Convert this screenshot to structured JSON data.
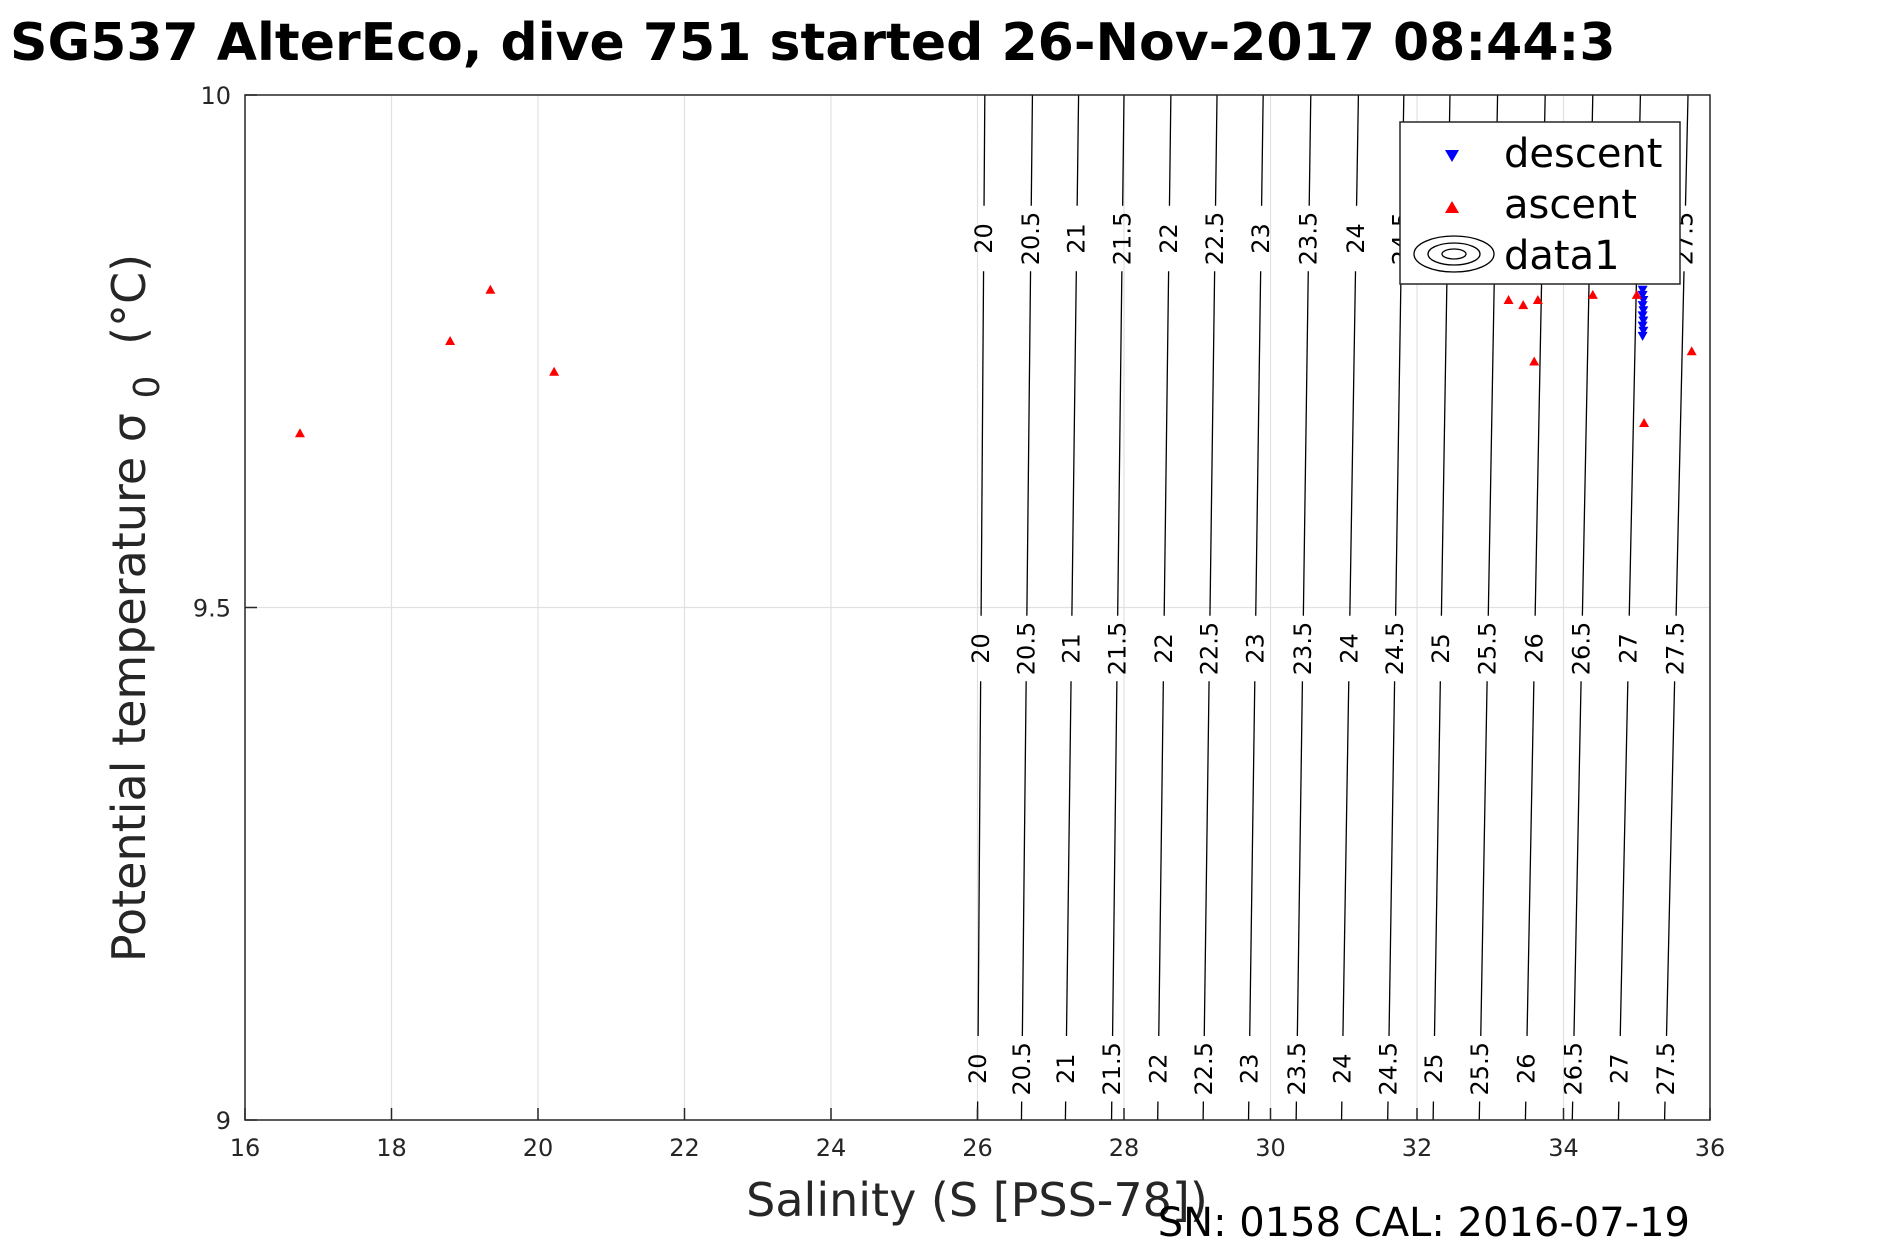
{
  "chart_data": {
    "type": "scatter",
    "title": "SG537 AlterEco, dive 751 started 26-Nov-2017 08:44:3",
    "xlabel": "Salinity (S [PSS-78])",
    "ylabel_main": "Potential temperature σ",
    "ylabel_sub": "0",
    "ylabel_unit": "(°C)",
    "xlim": [
      16,
      36
    ],
    "ylim": [
      9,
      10
    ],
    "xticks": [
      "16",
      "18",
      "20",
      "22",
      "24",
      "26",
      "28",
      "30",
      "32",
      "34",
      "36"
    ],
    "yticks": [
      "9",
      "9.5",
      "10"
    ],
    "grid": true,
    "legend_position": "top-right",
    "footer": "SN: 0158  CAL: 2016-07-19",
    "series": [
      {
        "name": "descent",
        "marker": "triangle-down",
        "color": "#0000ff",
        "points": [
          [
            35.08,
            9.81
          ],
          [
            35.08,
            9.805
          ],
          [
            35.09,
            9.8
          ],
          [
            35.08,
            9.795
          ],
          [
            35.09,
            9.79
          ],
          [
            35.08,
            9.785
          ],
          [
            35.09,
            9.78
          ],
          [
            35.08,
            9.775
          ],
          [
            35.09,
            9.77
          ],
          [
            35.08,
            9.765
          ]
        ]
      },
      {
        "name": "ascent",
        "marker": "triangle-up",
        "color": "#ff0000",
        "points": [
          [
            16.75,
            9.67
          ],
          [
            18.8,
            9.76
          ],
          [
            19.35,
            9.81
          ],
          [
            20.22,
            9.73
          ],
          [
            33.25,
            9.8
          ],
          [
            33.45,
            9.795
          ],
          [
            33.6,
            9.74
          ],
          [
            33.65,
            9.8
          ],
          [
            34.4,
            9.805
          ],
          [
            35.0,
            9.805
          ],
          [
            35.08,
            9.82
          ],
          [
            35.09,
            9.83
          ],
          [
            35.08,
            9.835
          ],
          [
            35.1,
            9.84
          ],
          [
            35.1,
            9.68
          ],
          [
            35.75,
            9.75
          ]
        ]
      },
      {
        "name": "data1",
        "marker": "contour",
        "color": "#000000",
        "description_levels": "sigma0 isopycnals",
        "levels": [
          "20",
          "20.5",
          "21",
          "21.5",
          "22",
          "22.5",
          "23",
          "23.5",
          "24",
          "24.5",
          "25",
          "25.5",
          "26",
          "26.5",
          "27",
          "27.5"
        ],
        "level_values": [
          20,
          20.5,
          21,
          21.5,
          22,
          22.5,
          23,
          23.5,
          24,
          24.5,
          25,
          25.5,
          26,
          26.5,
          27,
          27.5
        ],
        "salinity_at_t10": [
          26.1,
          26.75,
          27.38,
          28.0,
          28.64,
          29.27,
          29.9,
          30.55,
          31.2,
          31.82,
          32.45,
          33.1,
          33.75,
          34.4,
          35.05,
          35.7
        ],
        "salinity_at_t9": [
          26.0,
          26.6,
          27.2,
          27.83,
          28.46,
          29.08,
          29.7,
          30.35,
          30.97,
          31.6,
          32.22,
          32.85,
          33.48,
          34.12,
          34.75,
          35.38
        ]
      }
    ]
  }
}
